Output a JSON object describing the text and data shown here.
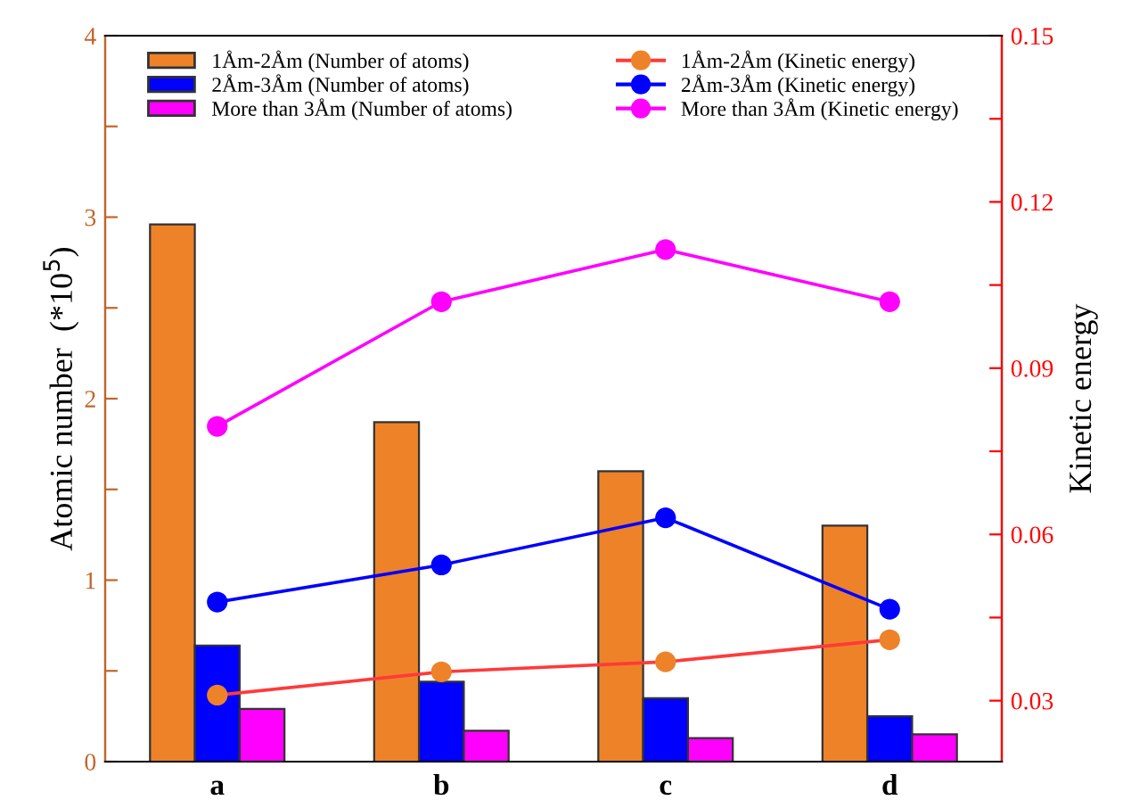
{
  "chart_data": {
    "type": "bar",
    "categories": [
      "a",
      "b",
      "c",
      "d"
    ],
    "ylabel": "Atomic number  (*10$^{5}$)",
    "y2label": "Kinetic energy",
    "ylim": [
      0,
      4
    ],
    "yticks": [
      0,
      {
        "value": 0.5,
        "label": null
      },
      1,
      {
        "value": 1.5,
        "label": null
      },
      2,
      {
        "value": 2.5,
        "label": null
      },
      3,
      {
        "value": 3.5,
        "label": null
      },
      4
    ],
    "y2lim": [
      0.019,
      0.15
    ],
    "y2ticks": [
      0.03,
      {
        "value": 0.045,
        "label": null
      },
      0.06,
      {
        "value": 0.075,
        "label": null
      },
      0.09,
      {
        "value": 0.105,
        "label": null
      },
      0.12,
      {
        "value": 0.135,
        "label": null
      },
      0.15
    ],
    "legend": "top",
    "grid": false,
    "marker": "circle",
    "series": [
      {
        "name": "1Åm-2Åm (Number of atoms)",
        "color": "#ee8228",
        "values": [
          2.96,
          1.87,
          1.6,
          1.3
        ]
      },
      {
        "name": "2Åm-3Åm (Number of atoms)",
        "color": "#0000ff",
        "values": [
          0.64,
          0.44,
          0.35,
          0.25
        ]
      },
      {
        "name": "More than 3Åm (Number of atoms)",
        "color": "#ff00ff",
        "values": [
          0.29,
          0.17,
          0.13,
          0.15
        ]
      },
      {
        "name": "1Åm-2Åm (Kinetic energy)",
        "type": "line",
        "axis": "y2",
        "color": "#ff3a3a",
        "colors": [
          "#ee8228",
          "#ee8228",
          "#ee8228",
          "#ee8228"
        ],
        "values": [
          0.031,
          0.0352,
          0.037,
          0.041
        ]
      },
      {
        "name": "2Åm-3Åm (Kinetic energy)",
        "type": "line",
        "axis": "y2",
        "color": "#0000ff",
        "values": [
          0.0478,
          0.0545,
          0.063,
          0.0465
        ]
      },
      {
        "name": "More than 3Åm (Kinetic energy)",
        "type": "line",
        "axis": "y2",
        "color": "#ff00ff",
        "values": [
          0.0795,
          0.102,
          0.1114,
          0.102
        ]
      }
    ]
  }
}
